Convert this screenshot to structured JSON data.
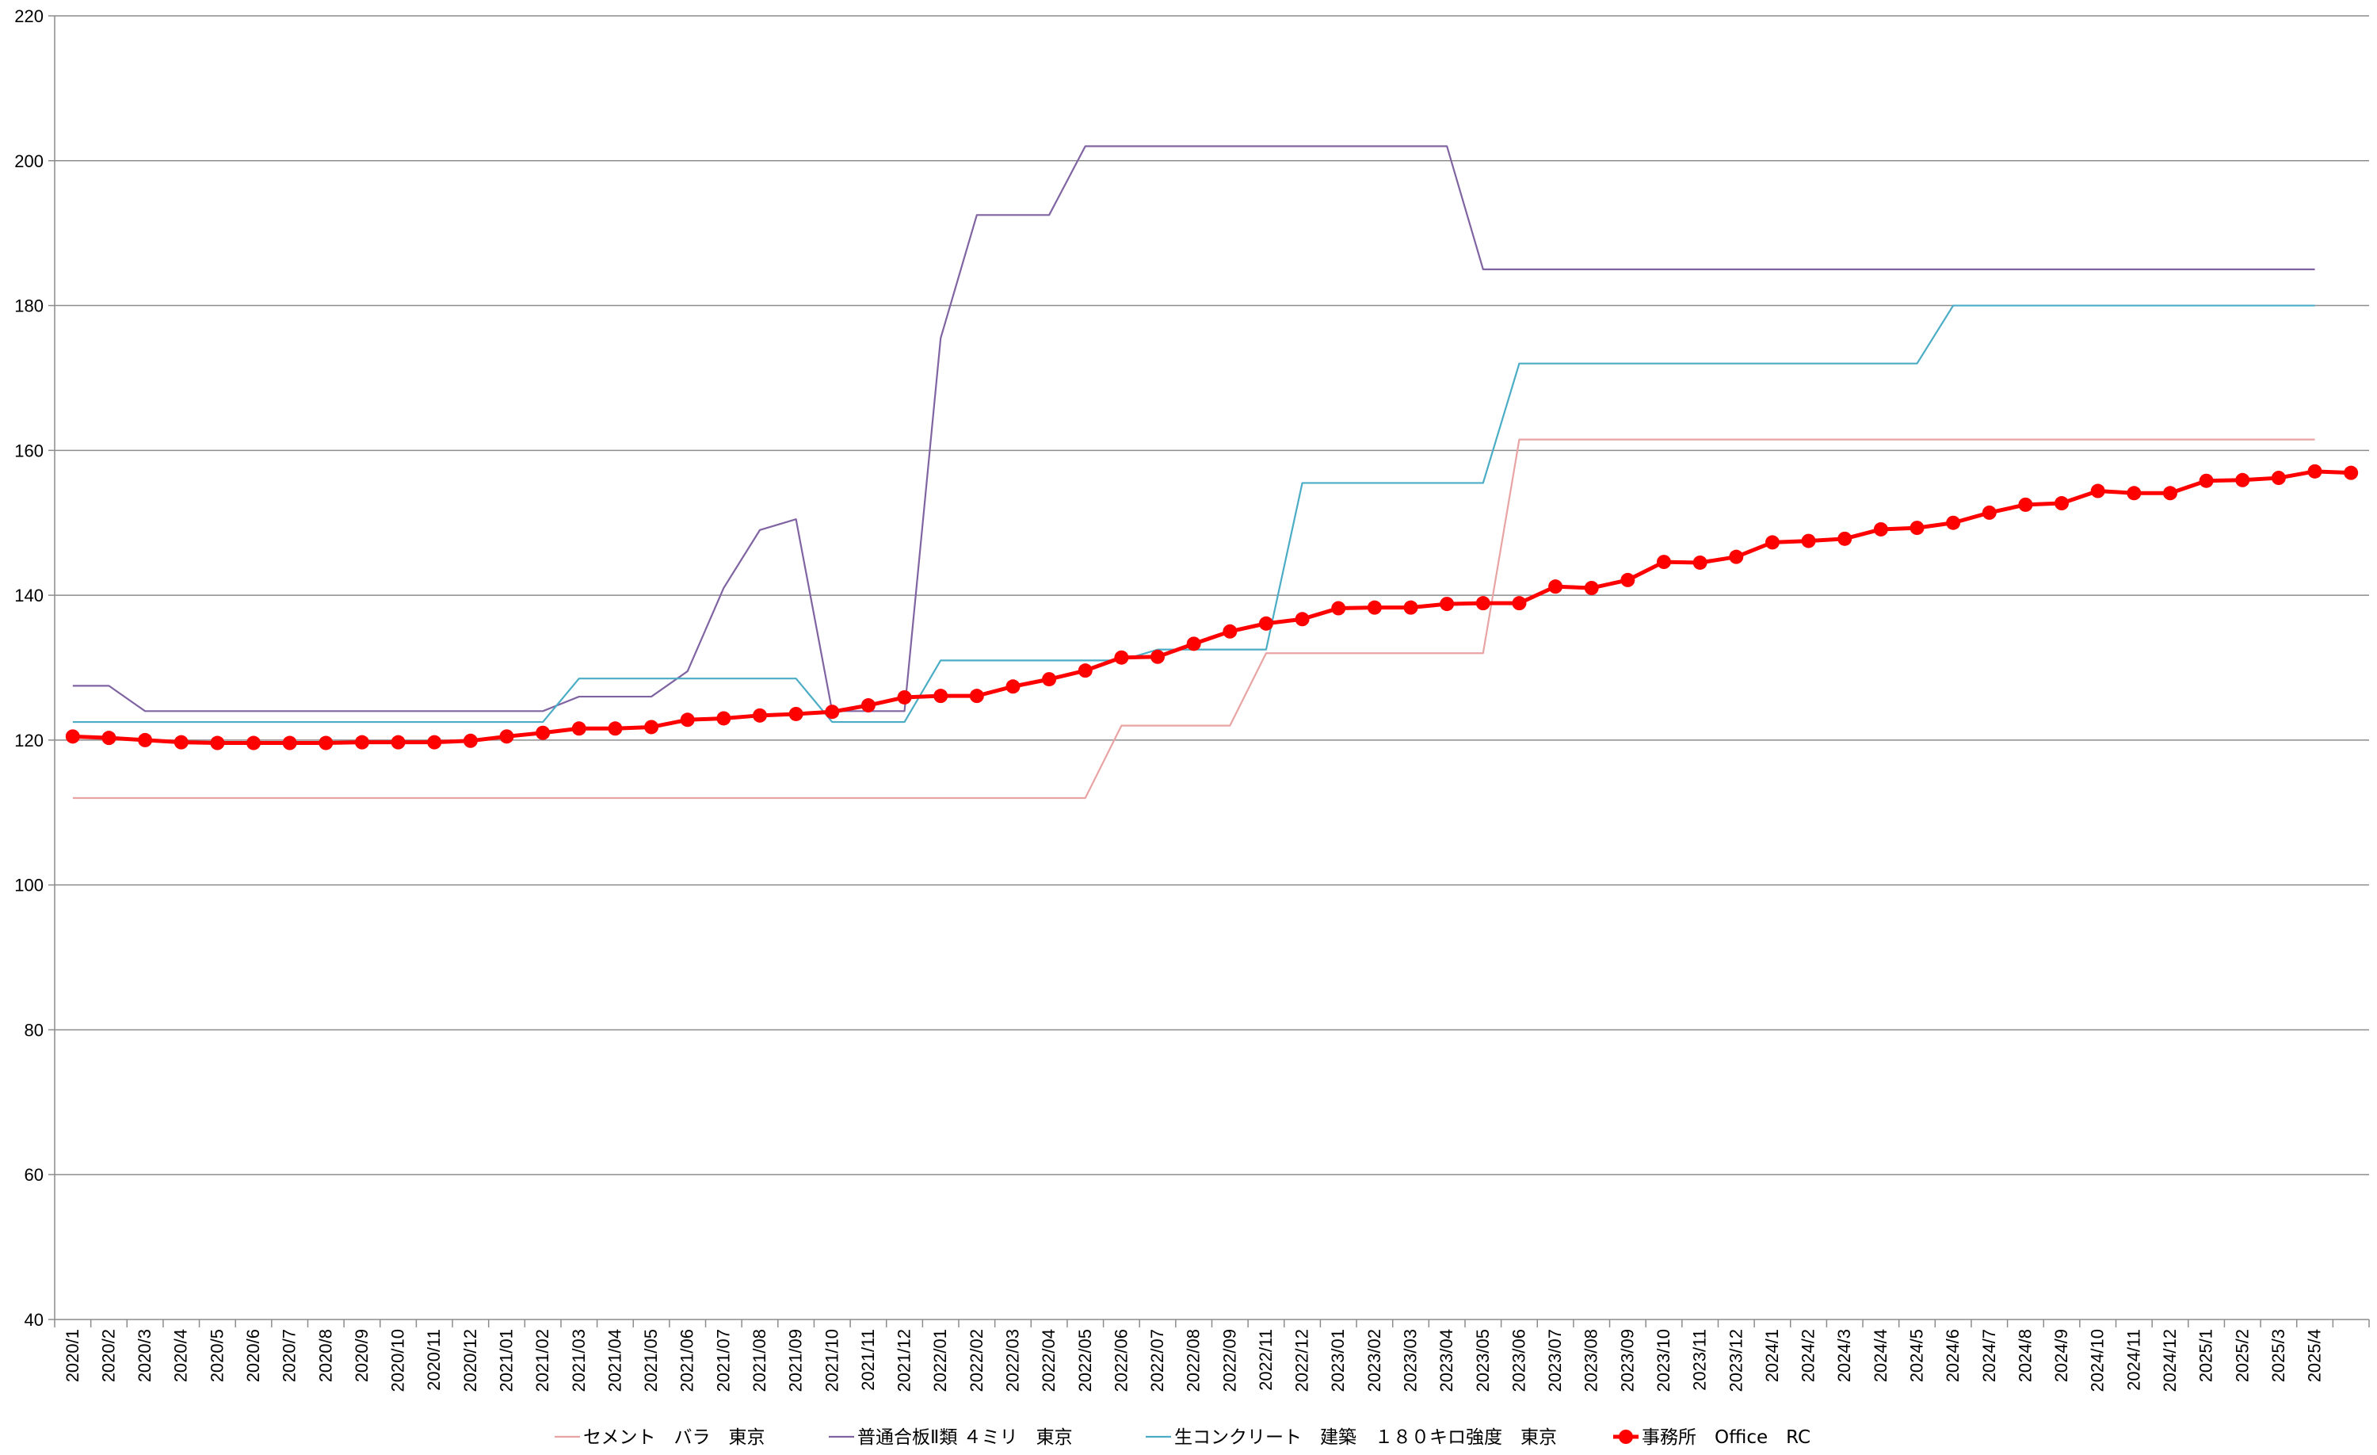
{
  "chart_data": {
    "type": "line",
    "title": "",
    "xlabel": "",
    "ylabel": "",
    "ylim": [
      40,
      220
    ],
    "yticks": [
      40,
      60,
      80,
      100,
      120,
      140,
      160,
      180,
      200,
      220
    ],
    "grid": "horizontal",
    "legend_position": "bottom",
    "categories": [
      "2020/1",
      "2020/2",
      "2020/3",
      "2020/4",
      "2020/5",
      "2020/6",
      "2020/7",
      "2020/8",
      "2020/9",
      "2020/10",
      "2020/11",
      "2020/12",
      "2021/01",
      "2021/02",
      "2021/03",
      "2021/04",
      "2021/05",
      "2021/06",
      "2021/07",
      "2021/08",
      "2021/09",
      "2021/10",
      "2021/11",
      "2021/12",
      "2022/01",
      "2022/02",
      "2022/03",
      "2022/04",
      "2022/05",
      "2022/06",
      "2022/07",
      "2022/08",
      "2022/09",
      "2022/11",
      "2022/12",
      "2023/01",
      "2023/02",
      "2023/03",
      "2023/04",
      "2023/05",
      "2023/06",
      "2023/07",
      "2023/08",
      "2023/09",
      "2023/10",
      "2023/11",
      "2023/12",
      "2024/1",
      "2024/2",
      "2024/3",
      "2024/4",
      "2024/5",
      "2024/6",
      "2024/7",
      "2024/8",
      "2024/9",
      "2024/10",
      "2024/11",
      "2024/12",
      "2025/1",
      "2025/2",
      "2025/3",
      "2025/4",
      ""
    ],
    "series": [
      {
        "name": "セメント　バラ　東京",
        "color": "#e8a3a3",
        "marker": "none",
        "values": [
          112,
          112,
          112,
          112,
          112,
          112,
          112,
          112,
          112,
          112,
          112,
          112,
          112,
          112,
          112,
          112,
          112,
          112,
          112,
          112,
          112,
          112,
          112,
          112,
          112,
          112,
          112,
          112,
          112,
          122,
          122,
          122,
          122,
          132,
          132,
          132,
          132,
          132,
          132,
          132,
          161.5,
          161.5,
          161.5,
          161.5,
          161.5,
          161.5,
          161.5,
          161.5,
          161.5,
          161.5,
          161.5,
          161.5,
          161.5,
          161.5,
          161.5,
          161.5,
          161.5,
          161.5,
          161.5,
          161.5,
          161.5,
          161.5,
          161.5,
          null
        ]
      },
      {
        "name": "普通合板Ⅱ類 ４ミリ　東京",
        "color": "#8064a2",
        "marker": "none",
        "values": [
          127.5,
          127.5,
          124,
          124,
          124,
          124,
          124,
          124,
          124,
          124,
          124,
          124,
          124,
          124,
          126,
          126,
          126,
          129.5,
          141,
          149,
          150.5,
          124,
          124,
          124,
          175.5,
          192.5,
          192.5,
          192.5,
          202,
          202,
          202,
          202,
          202,
          202,
          202,
          202,
          202,
          202,
          202,
          185,
          185,
          185,
          185,
          185,
          185,
          185,
          185,
          185,
          185,
          185,
          185,
          185,
          185,
          185,
          185,
          185,
          185,
          185,
          185,
          185,
          185,
          185,
          185,
          null
        ]
      },
      {
        "name": "生コンクリート　建築　１８０キロ強度　東京",
        "color": "#4bacc6",
        "marker": "none",
        "values": [
          122.5,
          122.5,
          122.5,
          122.5,
          122.5,
          122.5,
          122.5,
          122.5,
          122.5,
          122.5,
          122.5,
          122.5,
          122.5,
          122.5,
          128.5,
          128.5,
          128.5,
          128.5,
          128.5,
          128.5,
          128.5,
          122.5,
          122.5,
          122.5,
          131,
          131,
          131,
          131,
          131,
          131,
          132.5,
          132.5,
          132.5,
          132.5,
          155.5,
          155.5,
          155.5,
          155.5,
          155.5,
          155.5,
          172,
          172,
          172,
          172,
          172,
          172,
          172,
          172,
          172,
          172,
          172,
          172,
          180,
          180,
          180,
          180,
          180,
          180,
          180,
          180,
          180,
          180,
          180,
          null
        ]
      },
      {
        "name": "事務所　Office　RC",
        "color": "#ff0000",
        "marker": "circle",
        "values": [
          120.5,
          120.3,
          120,
          119.7,
          119.6,
          119.6,
          119.6,
          119.6,
          119.7,
          119.7,
          119.7,
          119.9,
          120.5,
          121,
          121.6,
          121.6,
          121.8,
          122.8,
          123,
          123.4,
          123.6,
          123.9,
          124.8,
          125.9,
          126.1,
          126.1,
          127.4,
          128.4,
          129.6,
          131.4,
          131.5,
          133.3,
          135,
          136.1,
          136.7,
          138.2,
          138.3,
          138.3,
          138.8,
          138.9,
          138.9,
          141.2,
          141,
          142.1,
          144.6,
          144.5,
          145.3,
          147.3,
          147.5,
          147.8,
          149.1,
          149.3,
          150,
          151.4,
          152.5,
          152.7,
          154.4,
          154.1,
          154.1,
          155.8,
          155.9,
          156.2,
          157.1,
          156.9
        ]
      }
    ]
  }
}
